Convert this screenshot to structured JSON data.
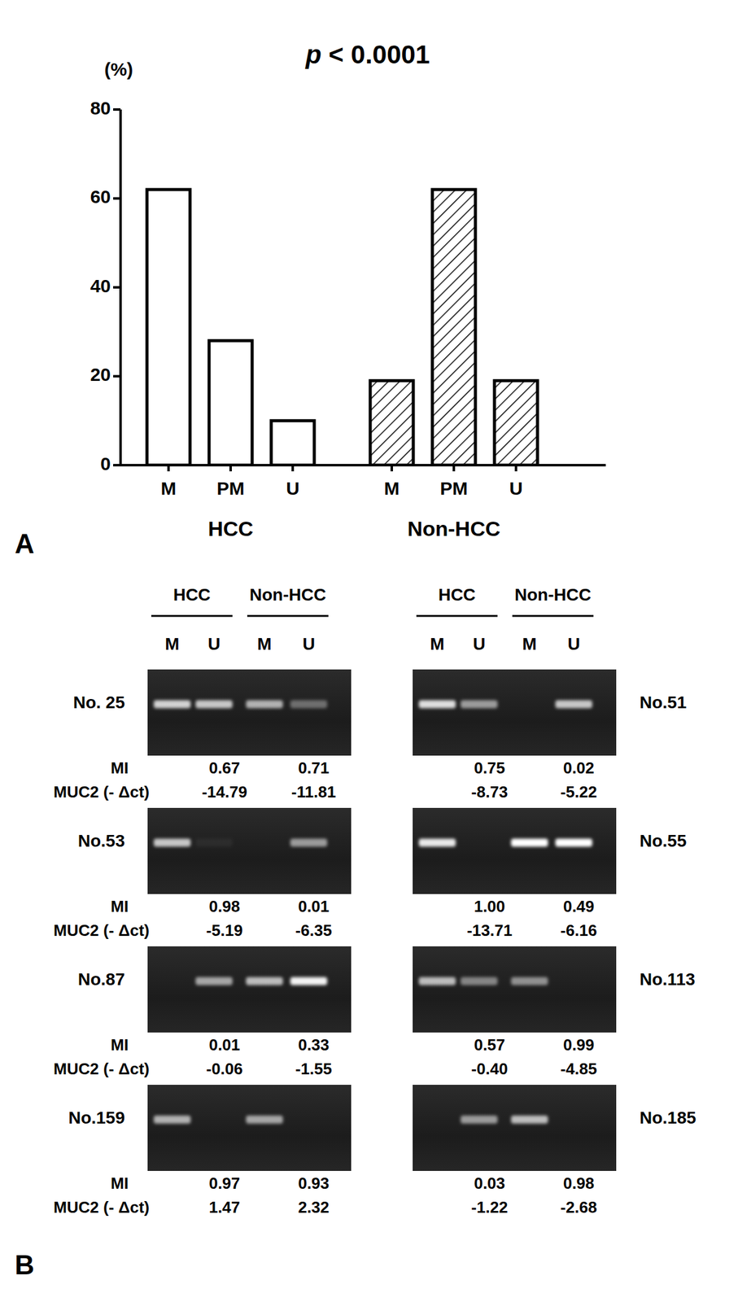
{
  "chart_data": {
    "type": "bar",
    "title": "p < 0.0001",
    "y_label": "(%)",
    "categories": [
      "M",
      "PM",
      "U"
    ],
    "series": [
      {
        "name": "HCC",
        "color": "#ffffff",
        "values": [
          62,
          28,
          10
        ]
      },
      {
        "name": "Non-HCC",
        "color": "#ffffff",
        "values": [
          19,
          62,
          19
        ]
      }
    ],
    "ylim": [
      0,
      80
    ],
    "yticks": [
      0,
      20,
      40,
      60,
      80
    ],
    "grid": false
  },
  "panel_labels": [
    "A",
    "B"
  ],
  "gel_panel": {
    "group_headers": [
      "HCC",
      "Non-HCC"
    ],
    "lane_labels": [
      "M",
      "U",
      "M",
      "U"
    ],
    "row_labels": [
      "MI",
      "MUC2 (- Δct)"
    ],
    "columns": [
      [
        {
          "id": "No. 25",
          "bands": [
            0.8,
            0.75,
            0.65,
            0.35
          ],
          "mi": [
            "0.67",
            "0.71"
          ],
          "muc2": [
            "-14.79",
            "-11.81"
          ]
        },
        {
          "id": "No.53",
          "bands": [
            0.75,
            0.05,
            0,
            0.55
          ],
          "mi": [
            "0.98",
            "0.01"
          ],
          "muc2": [
            "-5.19",
            "-6.35"
          ]
        },
        {
          "id": "No.87",
          "bands": [
            0,
            0.6,
            0.7,
            0.95
          ],
          "mi": [
            "0.01",
            "0.33"
          ],
          "muc2": [
            "-0.06",
            "-1.55"
          ]
        },
        {
          "id": "No.159",
          "bands": [
            0.65,
            0,
            0.6,
            0
          ],
          "mi": [
            "0.97",
            "0.93"
          ],
          "muc2": [
            "1.47",
            "2.32"
          ]
        }
      ],
      [
        {
          "id": "No.51",
          "bands": [
            0.85,
            0.55,
            0,
            0.75
          ],
          "mi": [
            "0.75",
            "0.02"
          ],
          "muc2": [
            "-8.73",
            "-5.22"
          ]
        },
        {
          "id": "No.55",
          "bands": [
            0.9,
            0,
            1.0,
            1.0
          ],
          "mi": [
            "1.00",
            "0.49"
          ],
          "muc2": [
            "-13.71",
            "-6.16"
          ]
        },
        {
          "id": "No.113",
          "bands": [
            0.7,
            0.45,
            0.5,
            0
          ],
          "mi": [
            "0.57",
            "0.99"
          ],
          "muc2": [
            "-0.40",
            "-4.85"
          ]
        },
        {
          "id": "No.185",
          "bands": [
            0,
            0.55,
            0.7,
            0
          ],
          "mi": [
            "0.03",
            "0.98"
          ],
          "muc2": [
            "-1.22",
            "-2.68"
          ]
        }
      ]
    ]
  }
}
